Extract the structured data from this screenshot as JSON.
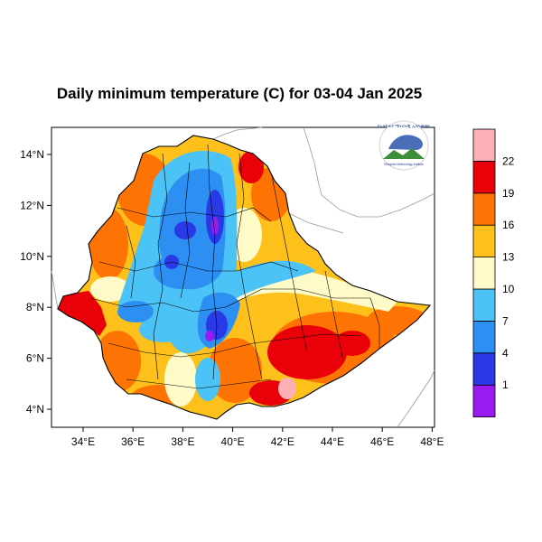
{
  "title": "Daily minimum temperature (C) for 03-04 Jan 2025",
  "map": {
    "region": "Ethiopia",
    "x_ticks": [
      "34°E",
      "36°E",
      "38°E",
      "40°E",
      "42°E",
      "44°E",
      "46°E",
      "48°E"
    ],
    "y_ticks": [
      "14°N",
      "12°N",
      "10°N",
      "8°N",
      "6°N",
      "4°N"
    ],
    "lon_range": [
      33,
      48.2
    ],
    "lat_range": [
      3.2,
      15
    ]
  },
  "colorbar": {
    "boundaries": [
      "1",
      "4",
      "7",
      "10",
      "13",
      "16",
      "19",
      "22"
    ],
    "colors": [
      "#9a1bf2",
      "#2a39e6",
      "#2e8ff3",
      "#4cc3f6",
      "#fffbc9",
      "#fec11c",
      "#fd7405",
      "#e90008",
      "#fbb0b5"
    ],
    "unit": "C"
  },
  "logo": {
    "text_top": "የኢትዮጵያ ሜትሮሎጂ ኢንስቲትዩት",
    "text_bottom": "Ethiopian Meteorology Institute"
  }
}
